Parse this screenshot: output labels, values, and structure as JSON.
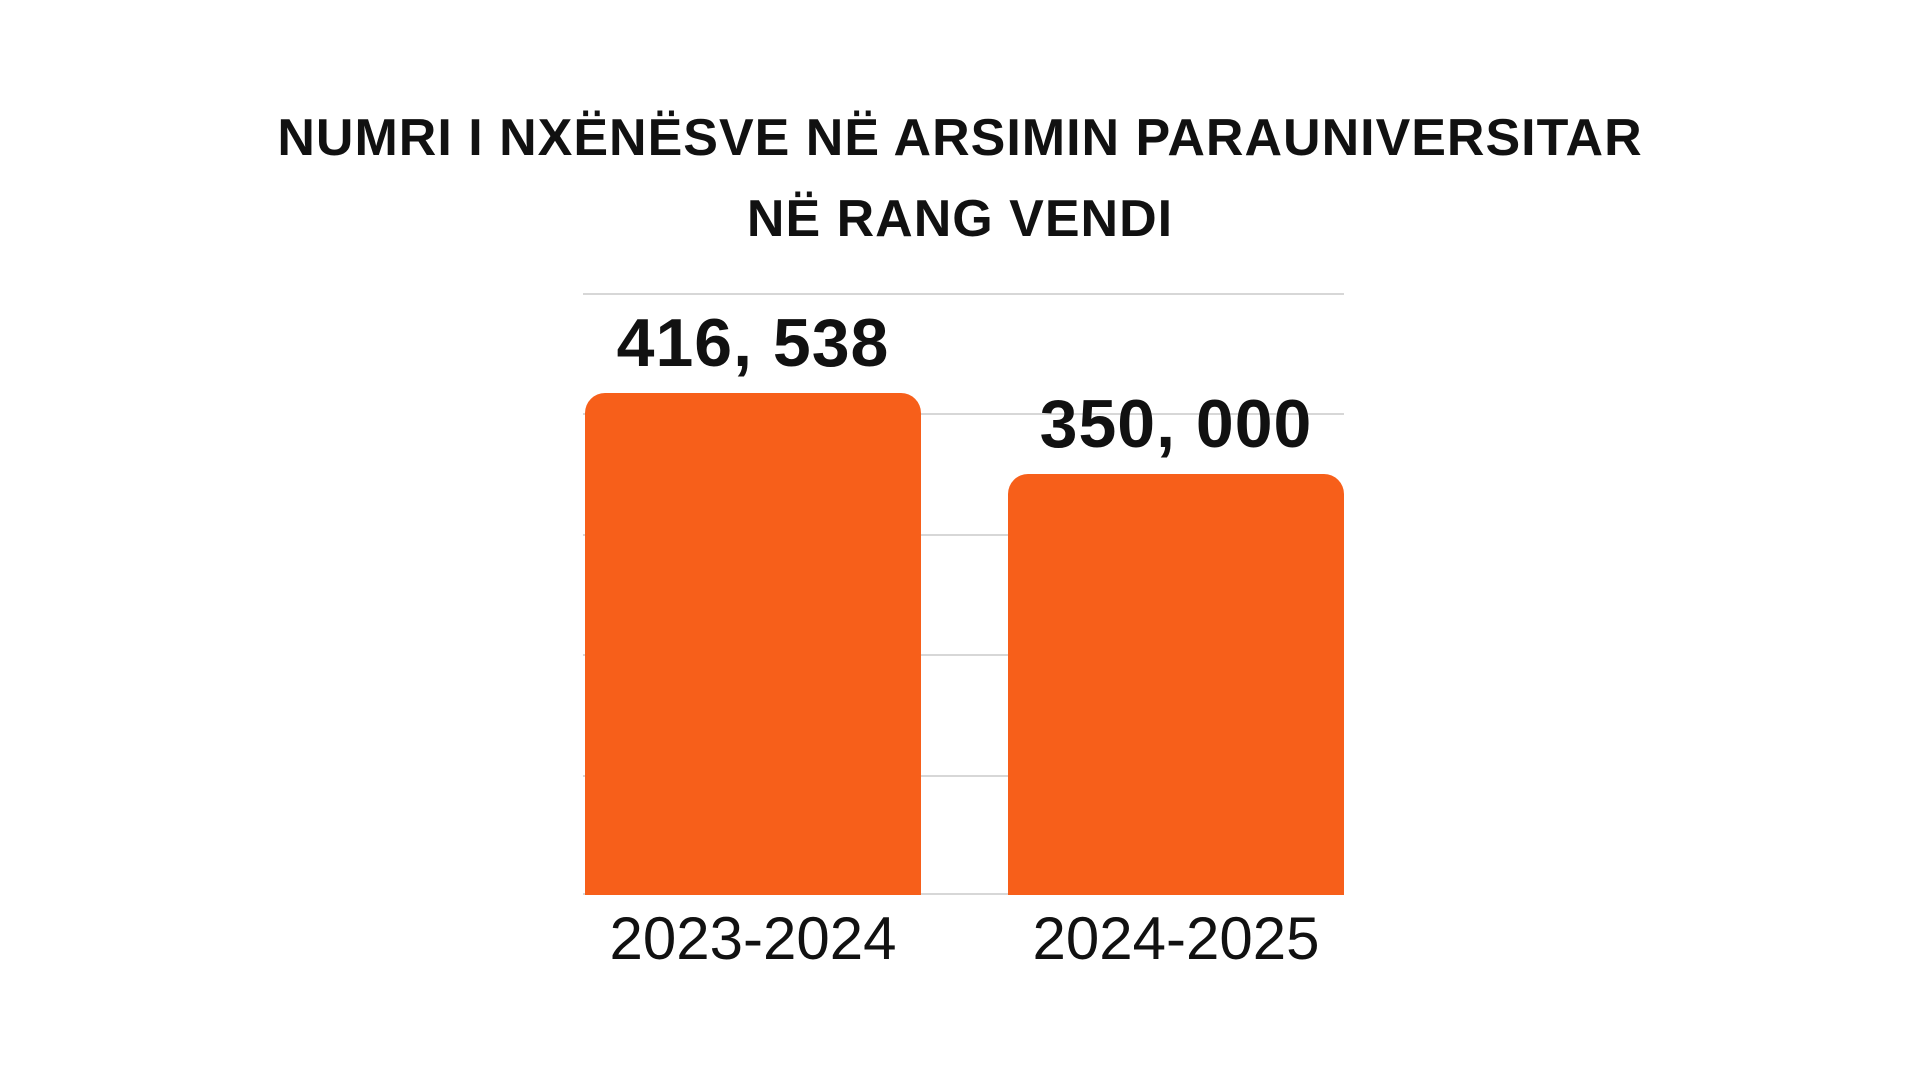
{
  "title": {
    "line1": "NUMRI I NXËNËSVE NË ARSIMIN PARAUNIVERSITAR",
    "line2": "NË RANG VENDI"
  },
  "chart_data": {
    "type": "bar",
    "title": "NUMRI I NXËNËSVE NË ARSIMIN PARAUNIVERSITAR NË RANG VENDI",
    "categories": [
      "2023-2024",
      "2024-2025"
    ],
    "values": [
      416538,
      350000
    ],
    "value_labels": [
      "416, 538",
      "350, 000"
    ],
    "xlabel": "",
    "ylabel": "",
    "ylim": [
      0,
      500000
    ],
    "gridline_interval": 100000,
    "grid": "horizontal",
    "legend": "none",
    "annotations": []
  },
  "colors": {
    "bar": "#F75F1A",
    "gridline": "#D7D7D7",
    "background": "#FFFFFF",
    "text": "#111111"
  }
}
